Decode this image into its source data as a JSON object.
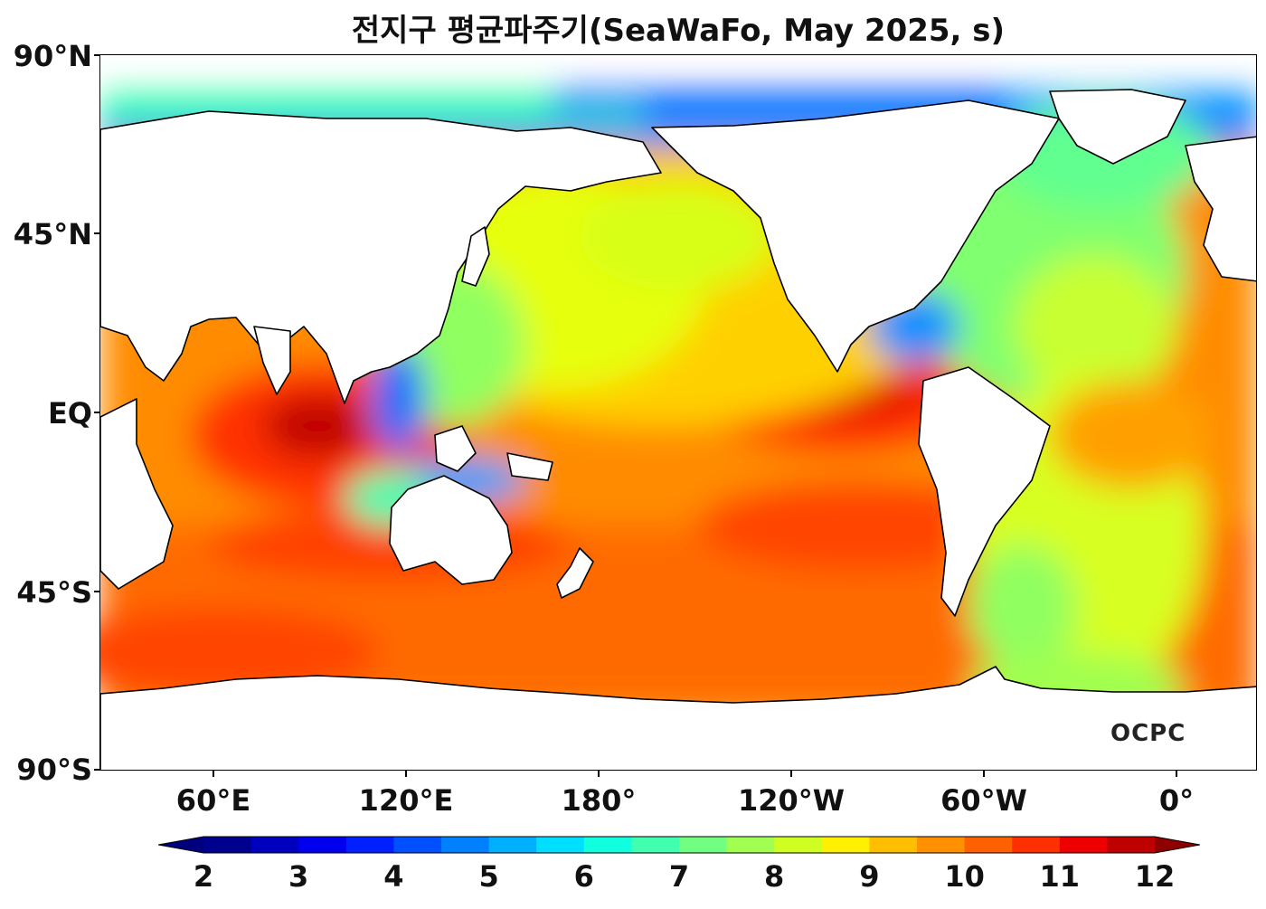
{
  "title": "전지구 평균파주기(SeaWaFo, May 2025, s)",
  "map": {
    "lat_ticks": [
      "90°N",
      "45°N",
      "EQ",
      "45°S",
      "90°S"
    ],
    "lon_ticks": [
      "60°E",
      "120°E",
      "180°",
      "120°W",
      "60°W",
      "0°"
    ],
    "logo": "OCPC"
  },
  "colorbar": {
    "labels": [
      "2",
      "3",
      "4",
      "5",
      "6",
      "7",
      "8",
      "9",
      "10",
      "11",
      "12"
    ],
    "min": 2,
    "max": 12,
    "step": 0.5,
    "extend": "both",
    "colors": [
      "#00008f",
      "#0000bf",
      "#0000ef",
      "#0020ff",
      "#0050ff",
      "#0080ff",
      "#00b0ff",
      "#00dfff",
      "#10ffdf",
      "#40ffaf",
      "#70ff80",
      "#a0ff50",
      "#cfff20",
      "#ffef00",
      "#ffbf00",
      "#ff9000",
      "#ff6000",
      "#ff3000",
      "#ef0000",
      "#bf0000"
    ],
    "under_color": "#00007f",
    "over_color": "#8f0000"
  },
  "colors": {
    "land": "#ffffff",
    "coast": "#000000"
  }
}
